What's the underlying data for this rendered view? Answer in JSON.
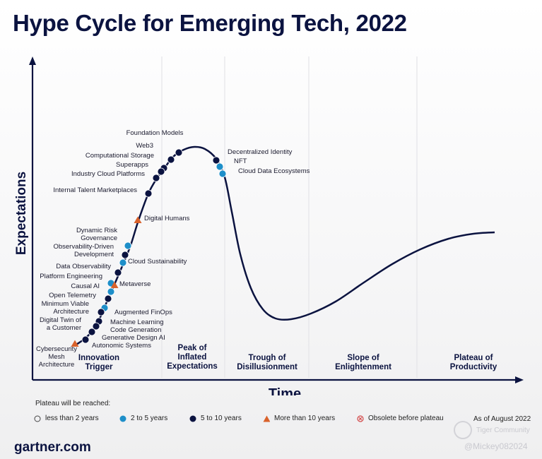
{
  "title": "Hype Cycle for Emerging Tech, 2022",
  "chart_data": {
    "type": "hype-cycle",
    "xlabel": "Time",
    "ylabel": "Expectations",
    "phases": [
      "Innovation Trigger",
      "Peak of Inflated Expectations",
      "Trough of Disillusionment",
      "Slope of Enlightenment",
      "Plateau of Productivity"
    ],
    "technologies": [
      {
        "name": "Foundation Models",
        "category": "5-10"
      },
      {
        "name": "Web3",
        "category": "5-10"
      },
      {
        "name": "Computational Storage",
        "category": "5-10"
      },
      {
        "name": "Superapps",
        "category": "5-10"
      },
      {
        "name": "Industry Cloud Platforms",
        "category": "5-10"
      },
      {
        "name": "Internal Talent Marketplaces",
        "category": "5-10"
      },
      {
        "name": "Digital Humans",
        "category": ">10"
      },
      {
        "name": "Dynamic Risk Governance",
        "category": "2-5"
      },
      {
        "name": "Observability-Driven Development",
        "category": "5-10"
      },
      {
        "name": "Cloud Sustainability",
        "category": "2-5"
      },
      {
        "name": "Data Observability",
        "category": "5-10"
      },
      {
        "name": "Platform Engineering",
        "category": "2-5"
      },
      {
        "name": "Metaverse",
        "category": ">10"
      },
      {
        "name": "Causal AI",
        "category": "2-5"
      },
      {
        "name": "Open Telemetry",
        "category": "5-10"
      },
      {
        "name": "Minimum Viable Architecture",
        "category": "2-5"
      },
      {
        "name": "Augmented FinOps",
        "category": "5-10"
      },
      {
        "name": "Digital Twin of a Customer",
        "category": "5-10"
      },
      {
        "name": "Machine Learning Code Generation",
        "category": "5-10"
      },
      {
        "name": "Generative Design AI",
        "category": "5-10"
      },
      {
        "name": "Autonomic Systems",
        "category": "5-10"
      },
      {
        "name": "Cybersecurity Mesh Architecture",
        "category": ">10"
      },
      {
        "name": "Decentralized Identity",
        "category": "5-10"
      },
      {
        "name": "NFT",
        "category": "2-5"
      },
      {
        "name": "Cloud Data Ecosystems",
        "category": "2-5"
      }
    ]
  },
  "legend": {
    "label": "Plateau will be reached:",
    "items": [
      {
        "key": "<2",
        "label": "less than 2 years",
        "symbol": "circle-outline"
      },
      {
        "key": "2-5",
        "label": "2 to 5 years",
        "symbol": "circle",
        "color": "#1e8fc9"
      },
      {
        "key": "5-10",
        "label": "5 to 10 years",
        "symbol": "circle",
        "color": "#0b1340"
      },
      {
        "key": ">10",
        "label": "More than 10 years",
        "symbol": "triangle",
        "color": "#d9622b"
      },
      {
        "key": "obsolete",
        "label": "Obsolete before plateau",
        "symbol": "circle-x",
        "color": "#d34a4a"
      }
    ]
  },
  "as_of": "As of August 2022",
  "footer": "gartner.com",
  "watermark": {
    "community": "Tiger Community",
    "handle": "@Mickey082024"
  },
  "colors": {
    "navy": "#0b1340",
    "blue": "#1e8fc9",
    "orange": "#d9622b",
    "red": "#d34a4a"
  }
}
